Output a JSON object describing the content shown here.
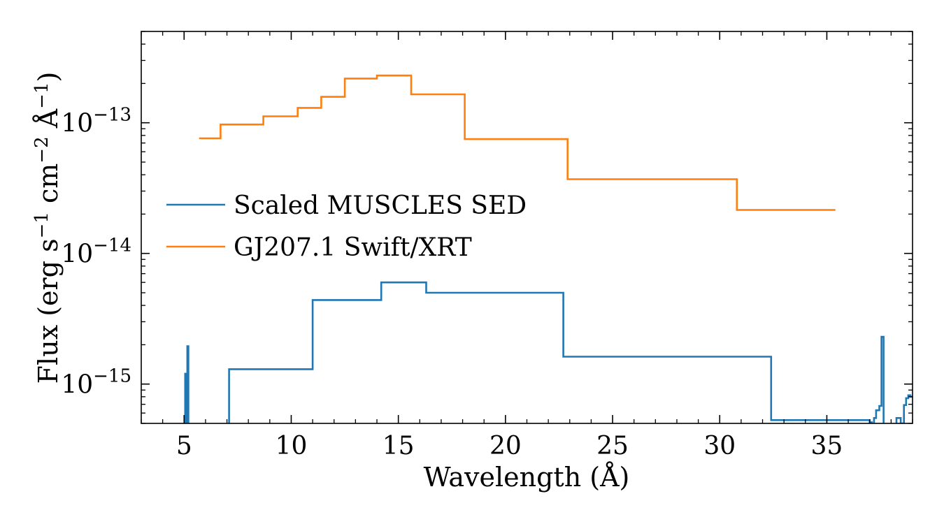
{
  "chart_data": {
    "type": "line",
    "drawstyle": "steps",
    "xlabel": "Wavelength (Å)",
    "ylabel": {
      "prefix": "Flux (erg s",
      "sup1": "−1",
      "mid": " cm",
      "sup2": "−2",
      "mid2": " Å",
      "sup3": "−1",
      "suffix": ")"
    },
    "xlim": [
      3,
      39
    ],
    "ylim": [
      5e-16,
      5e-13
    ],
    "yscale": "log",
    "grid": false,
    "legend_position": "center-left",
    "xticks": [
      5,
      10,
      15,
      20,
      25,
      30,
      35
    ],
    "xtick_labels": [
      "5",
      "10",
      "15",
      "20",
      "25",
      "30",
      "35"
    ],
    "yticks": [
      {
        "value": 1e-15,
        "base": "10",
        "exp": "−15"
      },
      {
        "value": 1e-14,
        "base": "10",
        "exp": "−14"
      },
      {
        "value": 1e-13,
        "base": "10",
        "exp": "−13"
      }
    ],
    "series": [
      {
        "name": "Scaled MUSCLES SED",
        "color": "#1f77b4",
        "x": [
          4.9,
          5.0,
          5.05,
          5.1,
          5.15,
          5.2,
          7.1,
          11.0,
          14.2,
          16.3,
          22.7,
          32.4,
          37.0,
          37.1,
          37.2,
          37.3,
          37.45,
          37.55,
          37.65,
          37.8,
          37.95,
          38.25,
          38.45,
          38.6,
          38.7,
          38.8,
          38.9,
          39.0
        ],
        "y": [
          4e-16,
          4e-16,
          1.2e-15,
          4e-16,
          1.95e-15,
          4e-16,
          1.3e-15,
          4.4e-15,
          6e-15,
          5e-15,
          1.62e-15,
          5.3e-16,
          5.1e-16,
          4e-16,
          5.5e-16,
          6.3e-16,
          6.8e-16,
          2.3e-15,
          4e-16,
          4e-16,
          4e-16,
          5.5e-16,
          5e-16,
          6.9e-16,
          7.8e-16,
          8.2e-16,
          8e-16,
          8e-16
        ]
      },
      {
        "name": "GJ207.1 Swift/XRT",
        "color": "#ff7f0e",
        "x": [
          5.7,
          6.7,
          8.7,
          10.3,
          11.4,
          12.5,
          14.0,
          15.6,
          18.1,
          22.9,
          30.8,
          35.4
        ],
        "y": [
          7.6e-14,
          9.7e-14,
          1.12e-13,
          1.3e-13,
          1.58e-13,
          2.18e-13,
          2.3e-13,
          1.65e-13,
          7.5e-14,
          3.7e-14,
          2.15e-14,
          2.15e-14
        ]
      }
    ]
  }
}
